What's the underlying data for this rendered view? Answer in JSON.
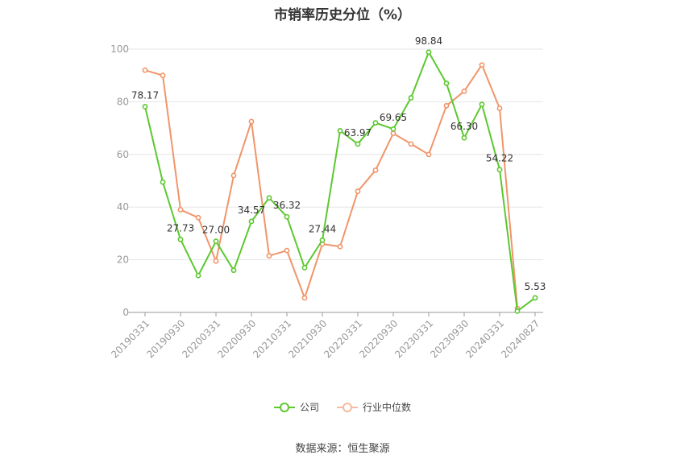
{
  "chart_data": {
    "type": "line",
    "title": "市销率历史分位（%）",
    "xlabel": "",
    "ylabel": "",
    "ylim": [
      0,
      100
    ],
    "yticks": [
      0,
      20,
      40,
      60,
      80,
      100
    ],
    "grid": true,
    "legend_position": "bottom-center",
    "x": [
      "20190331",
      "20190630",
      "20190930",
      "20191231",
      "20200331",
      "20200630",
      "20200930",
      "20201231",
      "20210331",
      "20210630",
      "20210930",
      "20211231",
      "20220331",
      "20220630",
      "20220930",
      "20221231",
      "20230331",
      "20230630",
      "20230930",
      "20231231",
      "20240331",
      "20240630",
      "20240827"
    ],
    "xtick_labels": [
      "20190331",
      "20190930",
      "20200331",
      "20200930",
      "20210331",
      "20210930",
      "20220331",
      "20220930",
      "20230331",
      "20230930",
      "20240331",
      "20240827"
    ],
    "xtick_indices": [
      0,
      2,
      4,
      6,
      8,
      10,
      12,
      14,
      16,
      18,
      20,
      22
    ],
    "series": [
      {
        "name": "公司",
        "color": "#5cc82f",
        "values": [
          78.17,
          49.5,
          27.73,
          14.0,
          27.0,
          16.0,
          34.57,
          43.5,
          36.32,
          17.0,
          27.44,
          69.0,
          63.97,
          72.0,
          69.65,
          81.5,
          98.84,
          87.0,
          66.3,
          79.0,
          54.22,
          0.5,
          5.53
        ],
        "label_indices": [
          0,
          2,
          4,
          6,
          8,
          10,
          12,
          14,
          16,
          18,
          20,
          22
        ],
        "label_texts": [
          "78.17",
          "27.73",
          "27.00",
          "34.57",
          "36.32",
          "27.44",
          "63.97",
          "69.65",
          "98.84",
          "66.30",
          "54.22",
          "5.53"
        ]
      },
      {
        "name": "行业中位数",
        "color": "#f0956a",
        "values": [
          92.0,
          90.0,
          39.0,
          36.0,
          19.5,
          52.0,
          72.5,
          21.5,
          23.5,
          5.5,
          26.0,
          25.0,
          46.0,
          54.0,
          68.0,
          64.0,
          60.0,
          78.5,
          84.0,
          94.0,
          77.5,
          1.5,
          null
        ]
      }
    ]
  },
  "source_text": "数据来源：恒生聚源"
}
